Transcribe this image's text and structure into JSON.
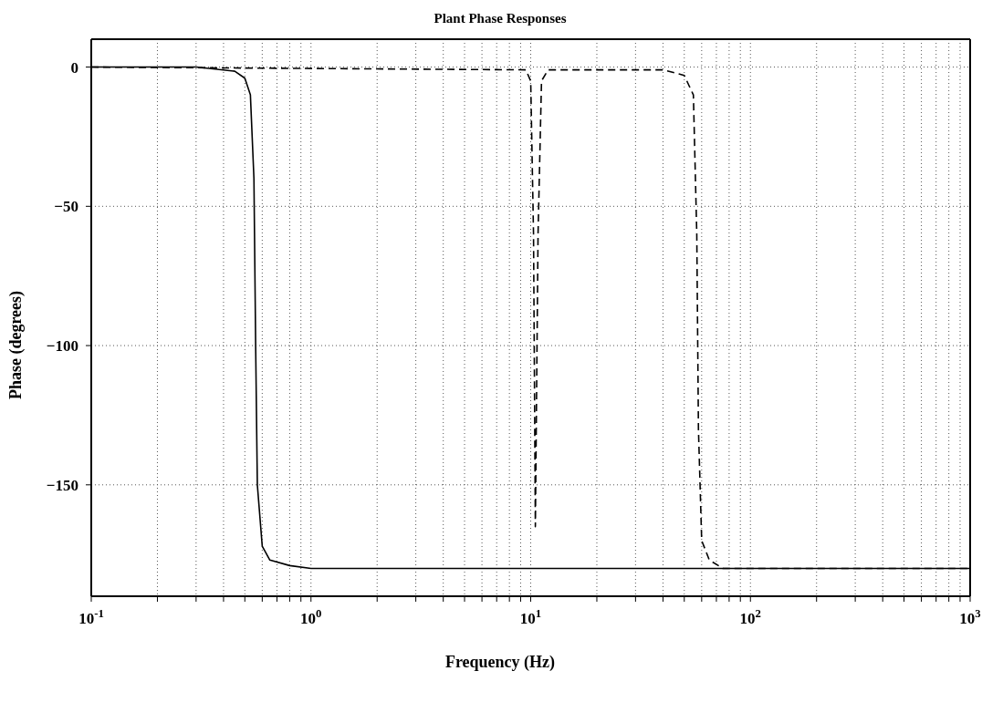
{
  "chart_data": {
    "type": "line",
    "title": "Plant Phase Responses",
    "xlabel": "Frequency (Hz)",
    "ylabel": "Phase (degrees)",
    "log": "x",
    "grid": true,
    "marker": "none",
    "xlim": [
      0.1,
      1000
    ],
    "xticks": [
      {
        "value": 0.1,
        "label": "10$^{-1}$"
      },
      {
        "value": 0.2,
        "label": null
      },
      {
        "value": 0.3,
        "label": null
      },
      {
        "value": 0.4,
        "label": null
      },
      {
        "value": 0.5,
        "label": null
      },
      {
        "value": 0.6,
        "label": null
      },
      {
        "value": 0.7,
        "label": null
      },
      {
        "value": 0.8,
        "label": null
      },
      {
        "value": 0.9,
        "label": null
      },
      {
        "value": 1,
        "label": "10$^{0}$"
      },
      {
        "value": 2,
        "label": null
      },
      {
        "value": 3,
        "label": null
      },
      {
        "value": 4,
        "label": null
      },
      {
        "value": 5,
        "label": null
      },
      {
        "value": 6,
        "label": null
      },
      {
        "value": 7,
        "label": null
      },
      {
        "value": 8,
        "label": null
      },
      {
        "value": 9,
        "label": null
      },
      {
        "value": 10,
        "label": "10$^{1}$"
      },
      {
        "value": 20,
        "label": null
      },
      {
        "value": 30,
        "label": null
      },
      {
        "value": 40,
        "label": null
      },
      {
        "value": 50,
        "label": null
      },
      {
        "value": 60,
        "label": null
      },
      {
        "value": 70,
        "label": null
      },
      {
        "value": 80,
        "label": null
      },
      {
        "value": 90,
        "label": null
      },
      {
        "value": 100,
        "label": "10$^{2}$"
      },
      {
        "value": 200,
        "label": null
      },
      {
        "value": 300,
        "label": null
      },
      {
        "value": 400,
        "label": null
      },
      {
        "value": 500,
        "label": null
      },
      {
        "value": 600,
        "label": null
      },
      {
        "value": 700,
        "label": null
      },
      {
        "value": 800,
        "label": null
      },
      {
        "value": 900,
        "label": null
      },
      {
        "value": 1000,
        "label": "10$^{3}$"
      }
    ],
    "ylim": [
      -190,
      10
    ],
    "yticks": [
      0,
      -50,
      -100,
      -150
    ],
    "series": [
      {
        "color": "#000000",
        "line_style": "solid",
        "x": [
          0.1,
          0.3,
          0.45,
          0.5,
          0.53,
          0.55,
          0.56,
          0.57,
          0.6,
          0.65,
          0.8,
          1,
          1000
        ],
        "values": [
          0,
          0,
          -1.5,
          -4,
          -10,
          -40,
          -100,
          -150,
          -172,
          -177,
          -179,
          -180,
          -180
        ]
      },
      {
        "color": "#000000",
        "line_style": "dashed",
        "x": [
          0.1,
          9.5,
          10,
          10.3,
          10.5,
          10.8,
          11.2,
          12,
          40,
          50,
          55,
          57,
          58,
          60,
          65,
          75,
          1000
        ],
        "values": [
          0,
          -1,
          -5,
          -60,
          -165,
          -60,
          -5,
          -1,
          -1,
          -3,
          -10,
          -60,
          -130,
          -170,
          -177,
          -180,
          -180
        ]
      }
    ]
  }
}
